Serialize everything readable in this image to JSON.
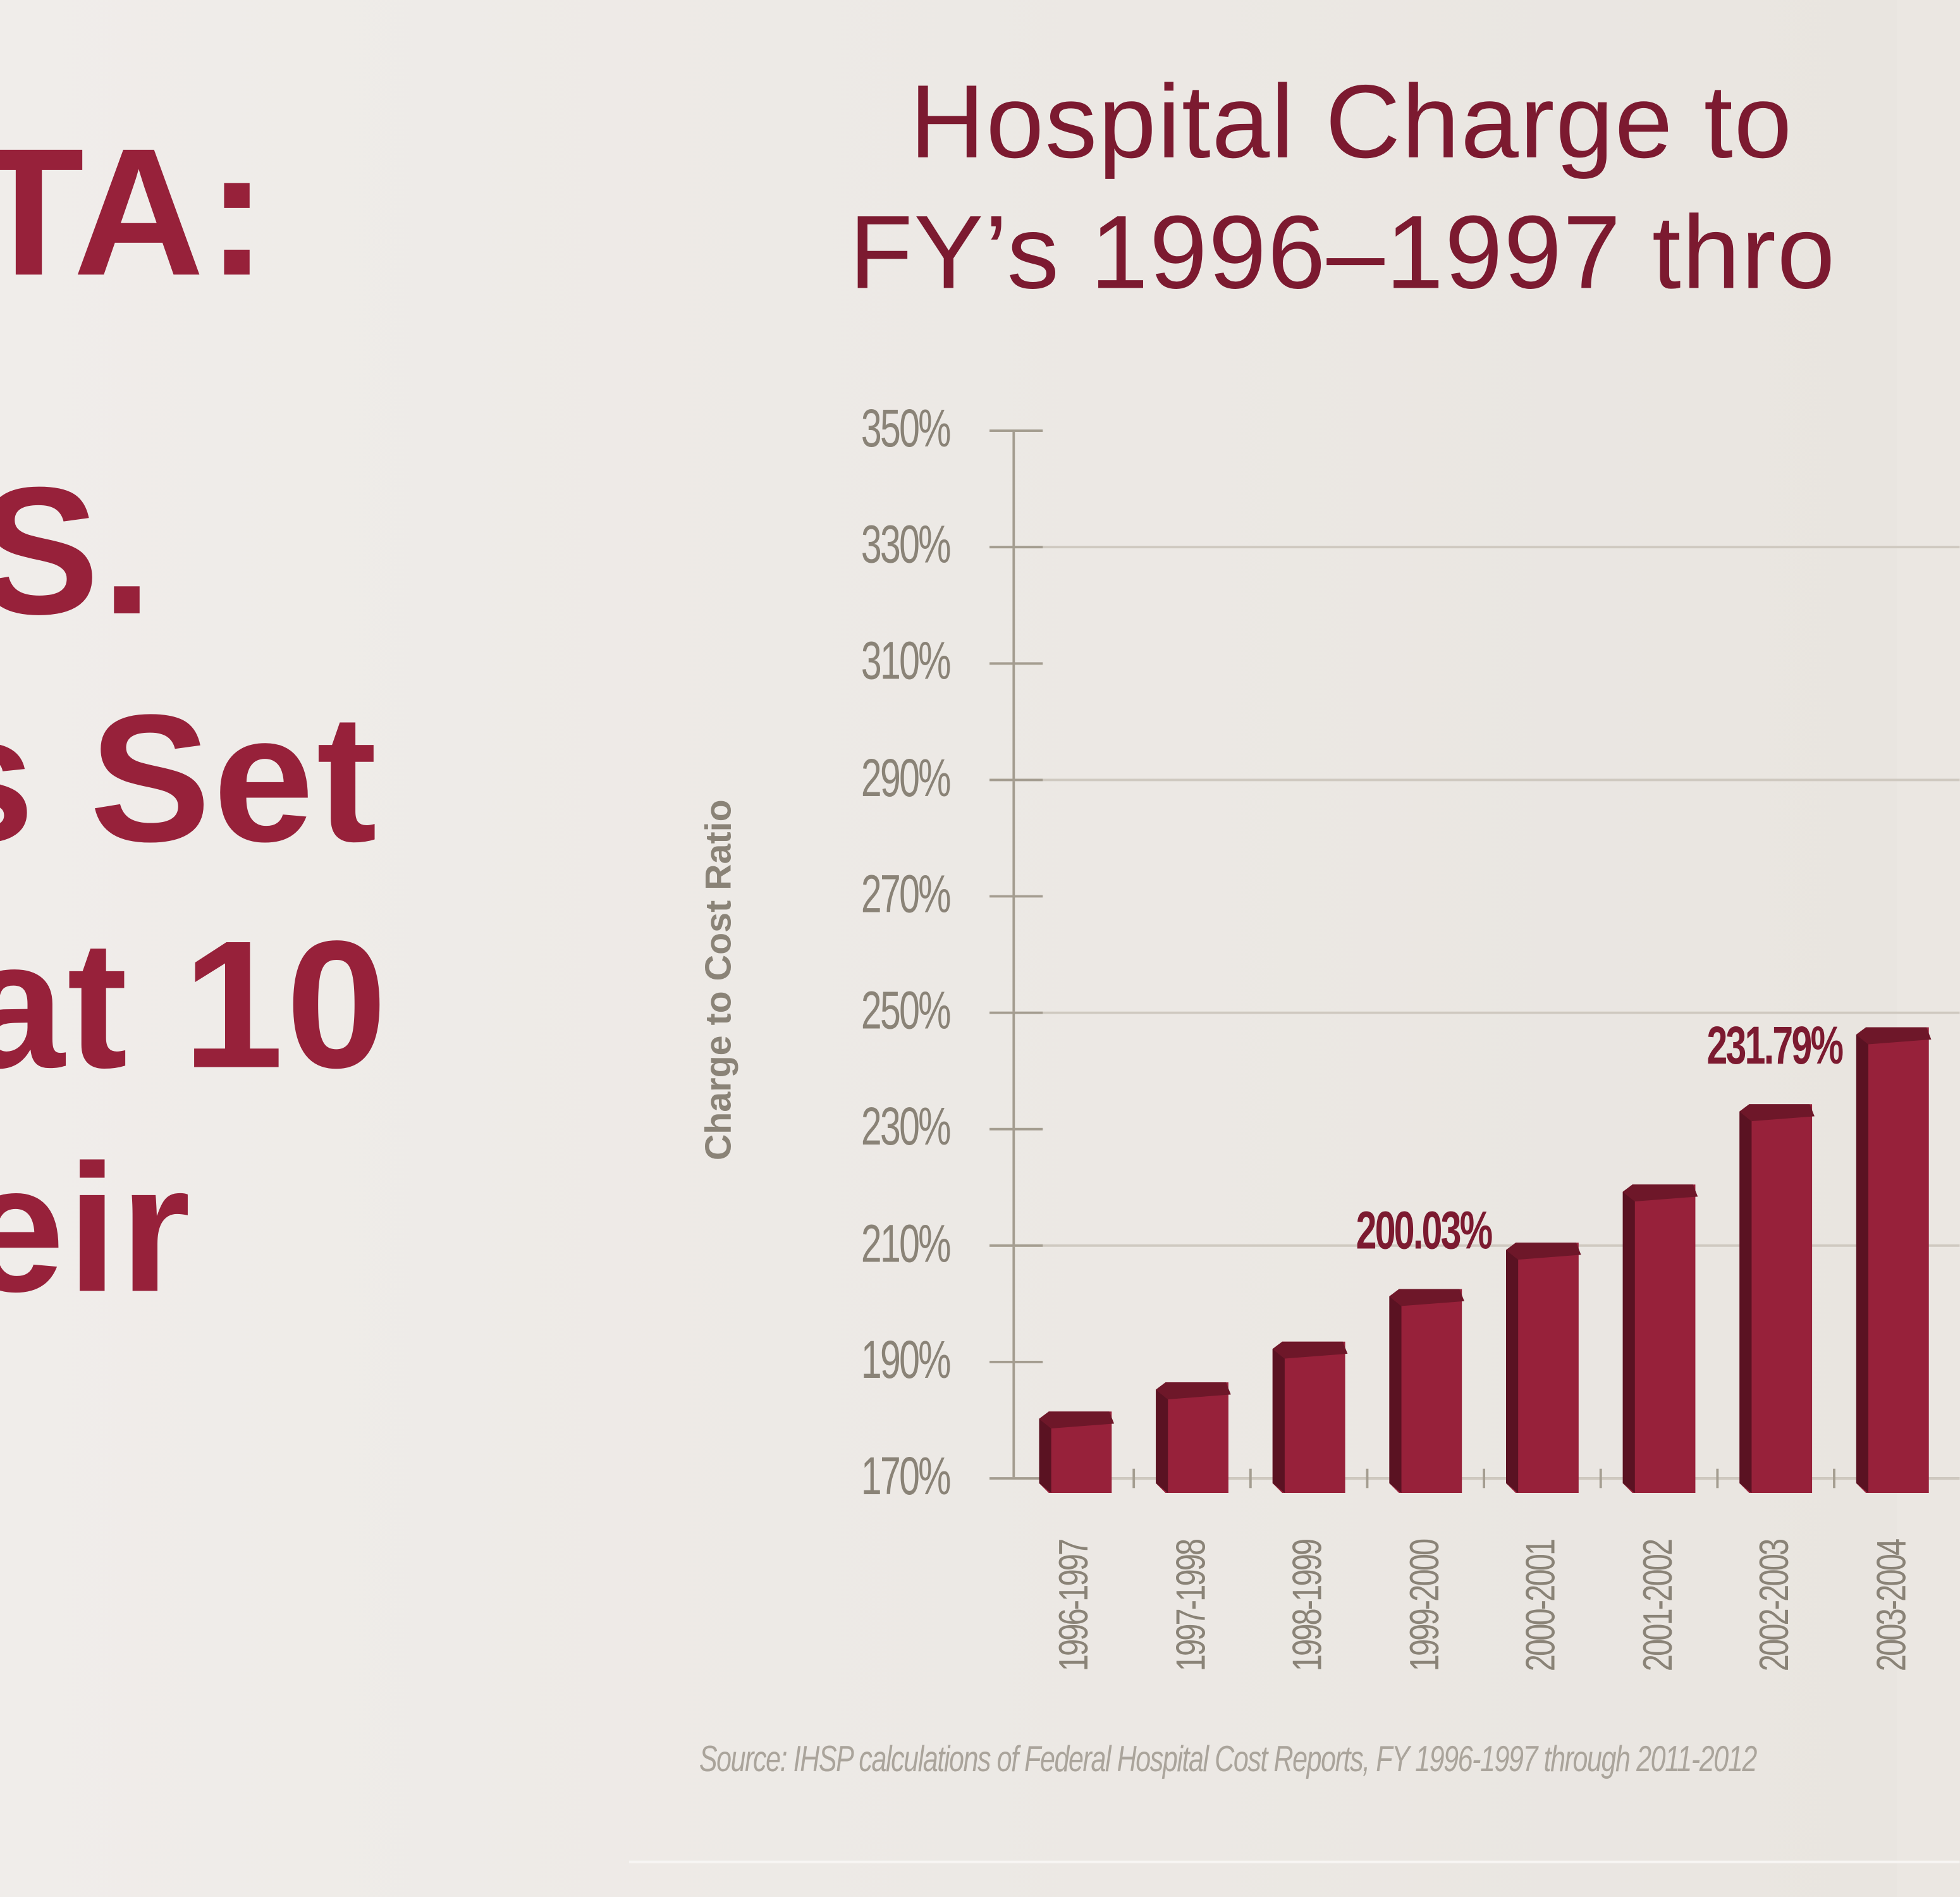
{
  "headline_lines": [
    "TA:",
    "S.",
    "s Set",
    "at 10",
    "eir"
  ],
  "chart_data": {
    "type": "bar",
    "title": "Hospital Charge to",
    "subtitle": "FY’s 1996–1997 thro",
    "ylabel": "Charge to Cost Ratio",
    "xlabel": "",
    "ylim": [
      170,
      350
    ],
    "yticks": [
      "350%",
      "330%",
      "310%",
      "290%",
      "270%",
      "250%",
      "230%",
      "210%",
      "190%",
      "170%"
    ],
    "ytick_values": [
      350,
      330,
      310,
      290,
      270,
      250,
      230,
      210,
      190,
      170
    ],
    "categories": [
      "1996-1997",
      "1997-1998",
      "1998-1999",
      "1999-2000",
      "2000-2001",
      "2001-2002",
      "2002-2003",
      "2003-2004"
    ],
    "values": [
      179,
      184,
      191,
      200.03,
      208,
      218,
      231.79,
      245
    ],
    "data_labels": {
      "1999-2000": "200.03%",
      "2002-2003": "231.79%"
    },
    "grid": true,
    "bar_color": "#97213a",
    "bar_shadow_color": "#5a1222",
    "source": "Source: IHSP calculations of Federal Hospital Cost Reports, FY 1996-1997 through 2011-2012"
  }
}
